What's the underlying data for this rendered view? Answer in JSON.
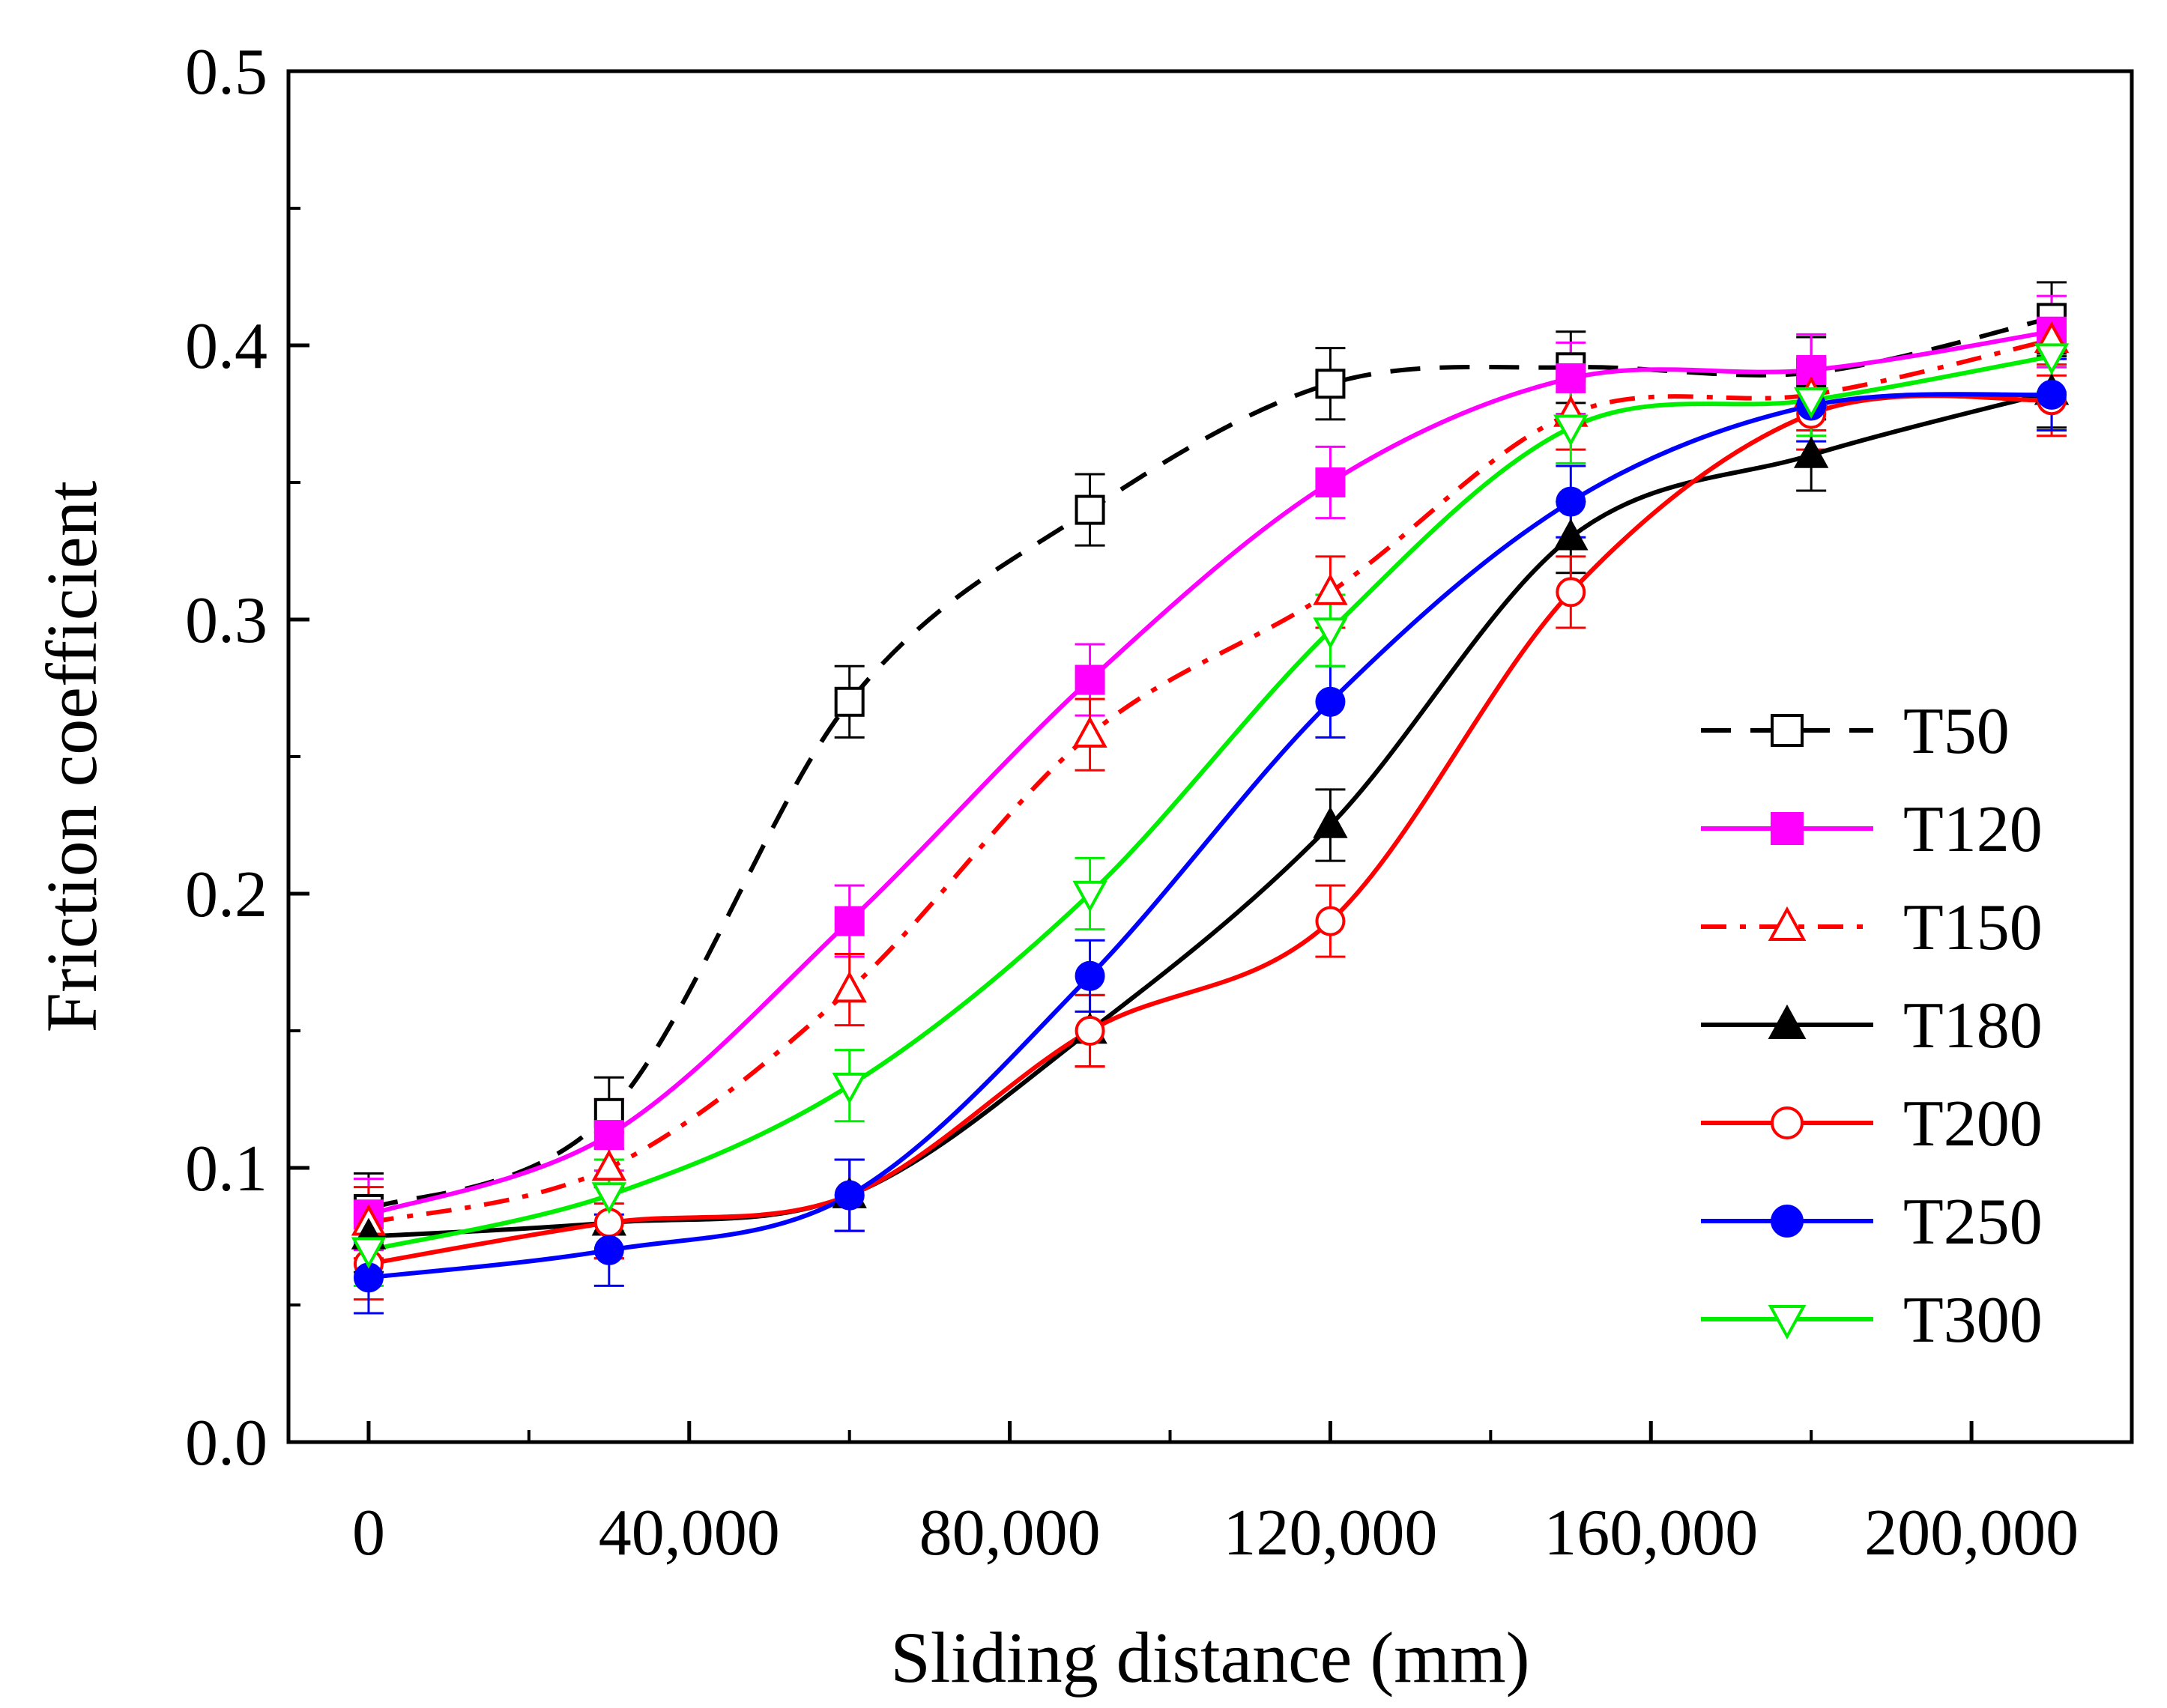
{
  "chart_data": {
    "type": "line",
    "title": "",
    "xlabel": "Sliding distance (mm)",
    "ylabel": "Friction coefficient",
    "xlim": [
      -10000,
      220000
    ],
    "ylim": [
      0,
      0.5
    ],
    "xticks": [
      0,
      40000,
      80000,
      120000,
      160000,
      200000
    ],
    "xtick_labels": [
      "0",
      "40,000",
      "80,000",
      "120,000",
      "160,000",
      "200,000"
    ],
    "yticks": [
      0,
      0.1,
      0.2,
      0.3,
      0.4,
      0.5
    ],
    "ytick_labels": [
      "0.0",
      "0.1",
      "0.2",
      "0.3",
      "0.4",
      "0.5"
    ],
    "grid": false,
    "legend_position": "right",
    "x": [
      0,
      30000,
      60000,
      90000,
      120000,
      150000,
      180000,
      210000
    ],
    "series": [
      {
        "name": "T50",
        "color": "#000000",
        "dash": "dashed",
        "marker": "square",
        "filled": false,
        "values": [
          0.085,
          0.12,
          0.27,
          0.34,
          0.386,
          0.392,
          0.39,
          0.41
        ],
        "errors": [
          0.013,
          0.013,
          0.013,
          0.013,
          0.013,
          0.013,
          0.013,
          0.013
        ]
      },
      {
        "name": "T120",
        "color": "#ff00ff",
        "dash": "solid",
        "marker": "square",
        "filled": true,
        "values": [
          0.083,
          0.112,
          0.19,
          0.278,
          0.35,
          0.388,
          0.391,
          0.405
        ],
        "errors": [
          0.013,
          0.013,
          0.013,
          0.013,
          0.013,
          0.013,
          0.013,
          0.013
        ]
      },
      {
        "name": "T150",
        "color": "#ff0000",
        "dash": "dashdot",
        "marker": "triangle-up",
        "filled": false,
        "values": [
          0.08,
          0.1,
          0.165,
          0.258,
          0.31,
          0.375,
          0.382,
          0.402
        ],
        "errors": [
          0.013,
          0.013,
          0.013,
          0.013,
          0.013,
          0.013,
          0.013,
          0.013
        ]
      },
      {
        "name": "T180",
        "color": "#000000",
        "dash": "solid",
        "marker": "triangle-up",
        "filled": true,
        "values": [
          0.075,
          0.08,
          0.09,
          0.15,
          0.225,
          0.33,
          0.36,
          0.383
        ],
        "errors": [
          0.013,
          0.013,
          0.013,
          0.013,
          0.013,
          0.013,
          0.013,
          0.013
        ]
      },
      {
        "name": "T200",
        "color": "#ff0000",
        "dash": "solid",
        "marker": "circle",
        "filled": false,
        "values": [
          0.065,
          0.08,
          0.09,
          0.15,
          0.19,
          0.31,
          0.375,
          0.38
        ],
        "errors": [
          0.013,
          0.013,
          0.013,
          0.013,
          0.013,
          0.013,
          0.013,
          0.013
        ]
      },
      {
        "name": "T250",
        "color": "#0000ff",
        "dash": "solid",
        "marker": "circle",
        "filled": true,
        "values": [
          0.06,
          0.07,
          0.09,
          0.17,
          0.27,
          0.343,
          0.378,
          0.382
        ],
        "errors": [
          0.013,
          0.013,
          0.013,
          0.013,
          0.013,
          0.013,
          0.013,
          0.013
        ]
      },
      {
        "name": "T300",
        "color": "#00ee00",
        "dash": "solid",
        "marker": "triangle-down",
        "filled": false,
        "values": [
          0.07,
          0.09,
          0.13,
          0.2,
          0.296,
          0.37,
          0.38,
          0.396
        ],
        "errors": [
          0.013,
          0.013,
          0.013,
          0.013,
          0.013,
          0.013,
          0.013,
          0.013
        ]
      }
    ]
  }
}
